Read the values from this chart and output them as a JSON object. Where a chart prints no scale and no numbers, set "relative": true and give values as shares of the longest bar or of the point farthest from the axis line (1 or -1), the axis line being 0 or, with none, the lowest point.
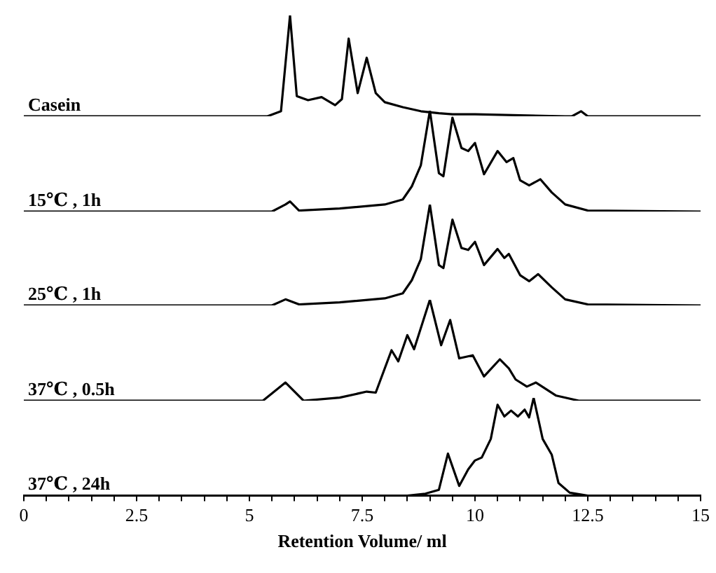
{
  "chart_data": [
    {
      "type": "line",
      "relative": true,
      "tick_labels": false,
      "xlim": [
        0,
        15
      ],
      "x": [
        0,
        5.4,
        5.7,
        5.9,
        6.05,
        6.3,
        6.6,
        6.9,
        7.05,
        7.2,
        7.4,
        7.6,
        7.8,
        8.0,
        8.4,
        8.8,
        9.2,
        9.5,
        10,
        11,
        12,
        12.15,
        12.35,
        12.5,
        15
      ],
      "series": [
        {
          "name": "Casein",
          "color": "#000000",
          "values": [
            0,
            0,
            0.05,
            1.0,
            0.2,
            0.16,
            0.19,
            0.11,
            0.17,
            0.77,
            0.23,
            0.58,
            0.23,
            0.14,
            0.09,
            0.05,
            0.03,
            0.02,
            0.02,
            0.01,
            0,
            0,
            0.05,
            0,
            0
          ]
        }
      ]
    },
    {
      "type": "line",
      "relative": true,
      "tick_labels": false,
      "xlim": [
        0,
        15
      ],
      "x": [
        0,
        5.5,
        5.8,
        5.9,
        6.1,
        7.0,
        8.0,
        8.4,
        8.6,
        8.8,
        9.0,
        9.2,
        9.3,
        9.5,
        9.7,
        9.85,
        10.0,
        10.2,
        10.5,
        10.7,
        10.85,
        11.0,
        11.2,
        11.45,
        11.7,
        12.0,
        12.5,
        15
      ],
      "series": [
        {
          "name": "15℃ , 1h",
          "color": "#000000",
          "values": [
            0,
            0,
            0.07,
            0.1,
            0.01,
            0.03,
            0.07,
            0.12,
            0.25,
            0.46,
            1.0,
            0.38,
            0.35,
            0.93,
            0.63,
            0.6,
            0.68,
            0.37,
            0.6,
            0.49,
            0.53,
            0.31,
            0.26,
            0.32,
            0.19,
            0.07,
            0.01,
            0
          ]
        }
      ]
    },
    {
      "type": "line",
      "relative": true,
      "tick_labels": false,
      "xlim": [
        0,
        15
      ],
      "x": [
        0,
        5.5,
        5.8,
        6.1,
        7.0,
        8.0,
        8.4,
        8.6,
        8.8,
        9.0,
        9.2,
        9.3,
        9.5,
        9.7,
        9.85,
        10.0,
        10.2,
        10.5,
        10.65,
        10.75,
        11.0,
        11.2,
        11.4,
        11.7,
        12.0,
        12.5,
        15
      ],
      "series": [
        {
          "name": "25℃ , 1h",
          "color": "#000000",
          "values": [
            0,
            0,
            0.06,
            0.01,
            0.03,
            0.07,
            0.12,
            0.25,
            0.46,
            1.0,
            0.4,
            0.37,
            0.85,
            0.57,
            0.55,
            0.63,
            0.4,
            0.56,
            0.47,
            0.51,
            0.3,
            0.24,
            0.31,
            0.18,
            0.06,
            0.01,
            0
          ]
        }
      ]
    },
    {
      "type": "line",
      "relative": true,
      "tick_labels": false,
      "xlim": [
        0,
        15
      ],
      "x": [
        0,
        5.3,
        5.8,
        6.2,
        7.0,
        7.6,
        7.8,
        8.15,
        8.3,
        8.5,
        8.65,
        9.0,
        9.25,
        9.45,
        9.65,
        9.95,
        10.2,
        10.55,
        10.75,
        10.9,
        11.15,
        11.35,
        11.8,
        12.3,
        15
      ],
      "series": [
        {
          "name": "37℃ , 0.5h",
          "color": "#000000",
          "values": [
            0,
            0,
            0.18,
            0,
            0.03,
            0.09,
            0.08,
            0.5,
            0.39,
            0.65,
            0.51,
            1.0,
            0.55,
            0.8,
            0.42,
            0.45,
            0.24,
            0.41,
            0.32,
            0.21,
            0.14,
            0.18,
            0.05,
            0,
            0
          ]
        }
      ]
    },
    {
      "type": "line",
      "relative": true,
      "tick_labels": "x",
      "xlim": [
        0,
        15
      ],
      "xlabel": "Retention Volume/ ml",
      "xticks": [
        0,
        {
          "value": 0.5,
          "label": null
        },
        {
          "value": 1,
          "label": null
        },
        {
          "value": 1.5,
          "label": null
        },
        {
          "value": 2,
          "label": null
        },
        2.5,
        {
          "value": 3,
          "label": null
        },
        {
          "value": 3.5,
          "label": null
        },
        {
          "value": 4,
          "label": null
        },
        {
          "value": 4.5,
          "label": null
        },
        5,
        {
          "value": 5.5,
          "label": null
        },
        {
          "value": 6,
          "label": null
        },
        {
          "value": 6.5,
          "label": null
        },
        {
          "value": 7,
          "label": null
        },
        7.5,
        {
          "value": 8,
          "label": null
        },
        {
          "value": 8.5,
          "label": null
        },
        {
          "value": 9,
          "label": null
        },
        {
          "value": 9.5,
          "label": null
        },
        10,
        {
          "value": 10.5,
          "label": null
        },
        {
          "value": 11,
          "label": null
        },
        {
          "value": 11.5,
          "label": null
        },
        {
          "value": 12,
          "label": null
        },
        12.5,
        {
          "value": 13,
          "label": null
        },
        {
          "value": 13.5,
          "label": null
        },
        {
          "value": 14,
          "label": null
        },
        {
          "value": 14.5,
          "label": null
        },
        15
      ],
      "x": [
        0,
        8.5,
        8.9,
        9.2,
        9.4,
        9.65,
        9.85,
        10.0,
        10.15,
        10.35,
        10.5,
        10.65,
        10.8,
        10.95,
        11.1,
        11.2,
        11.3,
        11.5,
        11.7,
        11.85,
        12.1,
        12.5,
        15
      ],
      "series": [
        {
          "name": "37℃ , 24h",
          "color": "#000000",
          "values": [
            0,
            0,
            0.02,
            0.06,
            0.43,
            0.1,
            0.27,
            0.36,
            0.39,
            0.58,
            0.93,
            0.81,
            0.87,
            0.81,
            0.88,
            0.8,
            1.0,
            0.58,
            0.42,
            0.13,
            0.03,
            0,
            0
          ]
        }
      ]
    }
  ]
}
